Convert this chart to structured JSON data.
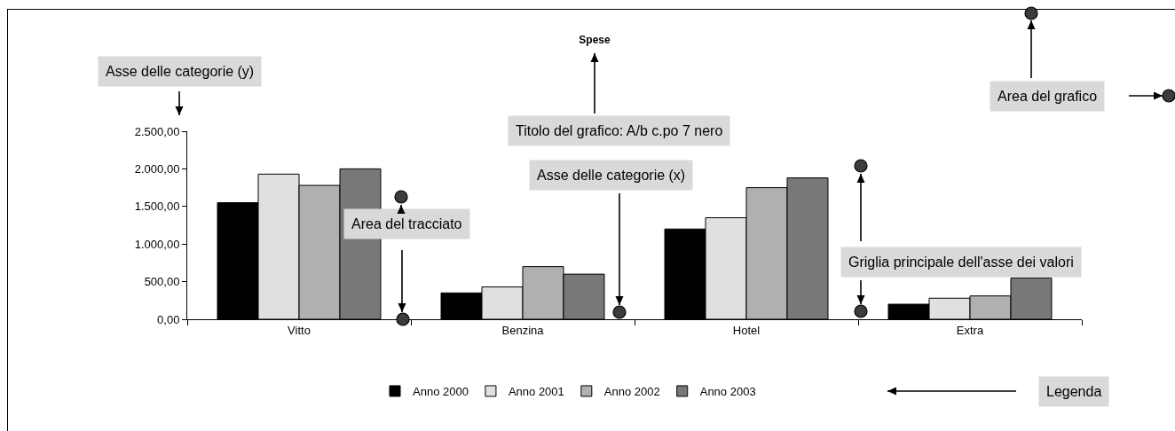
{
  "chart_data": {
    "type": "bar",
    "title": "Spese",
    "categories": [
      "Vitto",
      "Benzina",
      "Hotel",
      "Extra"
    ],
    "series": [
      {
        "name": "Anno 2000",
        "color": "#000000",
        "values": [
          1550,
          350,
          1200,
          200
        ]
      },
      {
        "name": "Anno 2001",
        "color": "#e0e0e0",
        "values": [
          1930,
          430,
          1350,
          280
        ]
      },
      {
        "name": "Anno 2002",
        "color": "#b0b0b0",
        "values": [
          1780,
          700,
          1750,
          310
        ]
      },
      {
        "name": "Anno 2003",
        "color": "#787878",
        "values": [
          2000,
          600,
          1880,
          550
        ]
      }
    ],
    "ylim": [
      0,
      2500
    ],
    "yticks": [
      {
        "value": 0,
        "label": "0,00"
      },
      {
        "value": 500,
        "label": "500,00"
      },
      {
        "value": 1000,
        "label": "1.000,00"
      },
      {
        "value": 1500,
        "label": "1.500,00"
      },
      {
        "value": 2000,
        "label": "2.000,00"
      },
      {
        "value": 2500,
        "label": "2.500,00"
      }
    ],
    "grid": false,
    "legend": "bottom",
    "annotations": [
      "Asse delle categorie (y)",
      "Titolo del grafico: A/b c.po 7 nero",
      "Area del grafico",
      "Area del tracciato",
      "Asse delle categorie (x)",
      "Griglia principale dell'asse dei valori",
      "Legenda"
    ]
  }
}
